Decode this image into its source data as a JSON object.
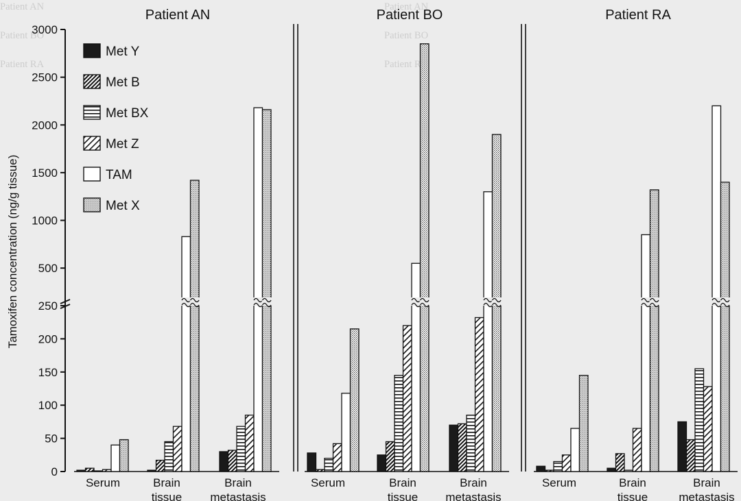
{
  "background_text": [
    "Patient AN",
    "Patient BO",
    "Patient RA"
  ],
  "chart_data": {
    "type": "bar",
    "ylabel": "Tamoxifen concentration (ng/g tissue)",
    "y_axis": {
      "scale": "broken",
      "lower_segment": [
        0,
        250
      ],
      "upper_segment": [
        250,
        3000
      ],
      "ticks": [
        0,
        50,
        100,
        150,
        200,
        250,
        500,
        1000,
        1500,
        2000,
        2500,
        3000
      ]
    },
    "grid": false,
    "legend_position": "top-left",
    "categories": [
      "Serum",
      "Brain tissue",
      "Brain metastasis"
    ],
    "series": [
      {
        "name": "Met Y",
        "pattern": "solid"
      },
      {
        "name": "Met B",
        "pattern": "hatch-dense"
      },
      {
        "name": "Met BX",
        "pattern": "horizontal-lines"
      },
      {
        "name": "Met Z",
        "pattern": "hatch-sparse"
      },
      {
        "name": "TAM",
        "pattern": "white"
      },
      {
        "name": "Met X",
        "pattern": "stipple"
      }
    ],
    "panels": [
      {
        "title": "Patient AN",
        "groups": [
          {
            "category": "Serum",
            "values": [
              2,
              5,
              1,
              3,
              40,
              48
            ]
          },
          {
            "category": "Brain tissue",
            "values": [
              2,
              17,
              45,
              68,
              830,
              1420
            ]
          },
          {
            "category": "Brain metastasis",
            "values": [
              30,
              32,
              68,
              85,
              2180,
              2160
            ]
          }
        ]
      },
      {
        "title": "Patient BO",
        "groups": [
          {
            "category": "Serum",
            "values": [
              28,
              3,
              20,
              42,
              118,
              215
            ]
          },
          {
            "category": "Brain tissue",
            "values": [
              25,
              45,
              145,
              220,
              550,
              2850
            ]
          },
          {
            "category": "Brain metastasis",
            "values": [
              70,
              72,
              85,
              232,
              1300,
              1900
            ]
          }
        ]
      },
      {
        "title": "Patient RA",
        "groups": [
          {
            "category": "Serum",
            "values": [
              8,
              2,
              15,
              25,
              65,
              145
            ]
          },
          {
            "category": "Brain tissue",
            "values": [
              5,
              27,
              2,
              65,
              850,
              1320
            ]
          },
          {
            "category": "Brain metastasis",
            "values": [
              75,
              48,
              155,
              128,
              2200,
              1400
            ]
          }
        ]
      }
    ]
  }
}
